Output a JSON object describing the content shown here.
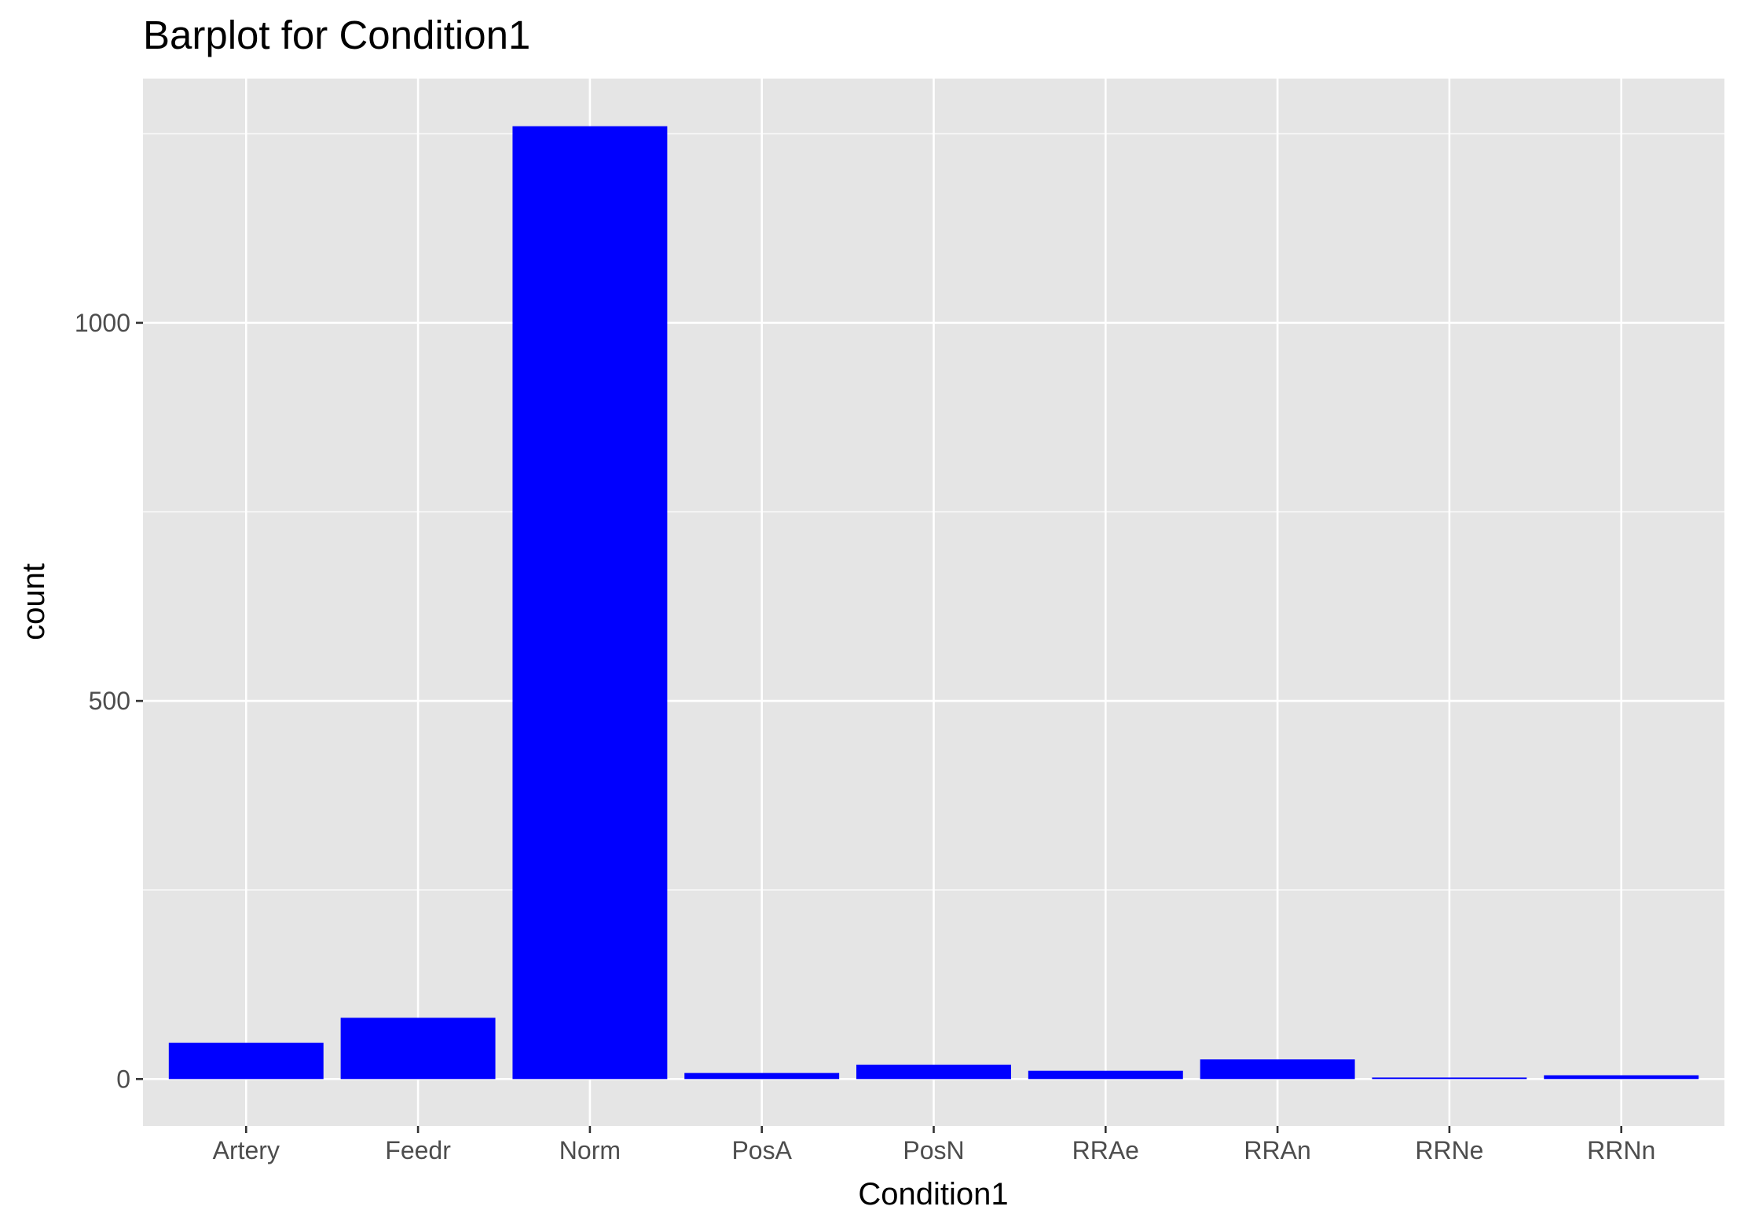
{
  "chart_data": {
    "type": "bar",
    "title": "Barplot for Condition1",
    "xlabel": "Condition1",
    "ylabel": "count",
    "categories": [
      "Artery",
      "Feedr",
      "Norm",
      "PosA",
      "PosN",
      "RRAe",
      "RRAn",
      "RRNe",
      "RRNn"
    ],
    "values": [
      48,
      81,
      1260,
      8,
      19,
      11,
      26,
      2,
      5
    ],
    "yticks": [
      0,
      500,
      1000
    ],
    "ylim": [
      -62,
      1323
    ],
    "grid": true,
    "bar_color": "#0000ff",
    "panel_color": "#e5e5e5",
    "grid_color": "#ffffff"
  }
}
